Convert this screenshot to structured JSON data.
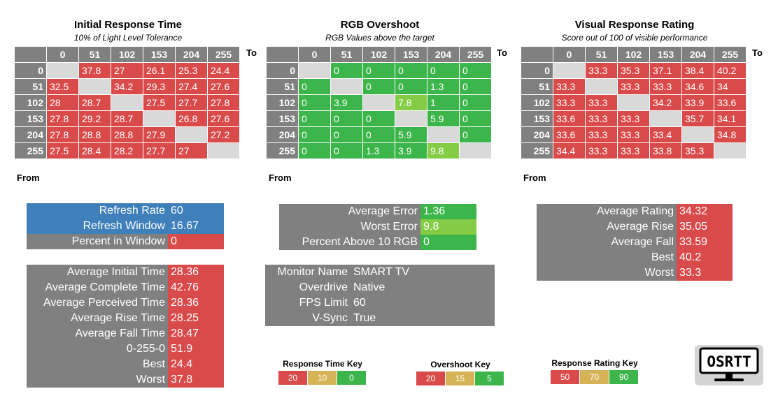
{
  "colors": {
    "red": "#d94b4b",
    "green": "#3cb54a",
    "lightgreen": "#85cc46",
    "yellow": "#d6b357",
    "grey": "#808080",
    "blue": "#3f7fba",
    "blank": "#d9d9d9"
  },
  "chart_data": [
    {
      "type": "heatmap",
      "title": "Initial Response Time",
      "subtitle": "10% of Light Level Tolerance",
      "to_label": "To",
      "from_label": "From",
      "columns": [
        "0",
        "51",
        "102",
        "153",
        "204",
        "255"
      ],
      "rows": [
        "0",
        "51",
        "102",
        "153",
        "204",
        "255"
      ],
      "values": [
        [
          null,
          "37.8",
          "27",
          "26.1",
          "25.3",
          "24.4"
        ],
        [
          "32.5",
          null,
          "34.2",
          "29.3",
          "27.4",
          "27.6"
        ],
        [
          "28",
          "28.7",
          null,
          "27.5",
          "27.7",
          "27.8"
        ],
        [
          "27.8",
          "29.2",
          "28.7",
          null,
          "26.8",
          "27.6"
        ],
        [
          "27.8",
          "28.8",
          "28.8",
          "27.9",
          null,
          "27.2"
        ],
        [
          "27.5",
          "28.4",
          "28.2",
          "27.7",
          "27",
          null
        ]
      ],
      "cell_colors": [
        [
          null,
          "red",
          "red",
          "red",
          "red",
          "red"
        ],
        [
          "red",
          null,
          "red",
          "red",
          "red",
          "red"
        ],
        [
          "red",
          "red",
          null,
          "red",
          "red",
          "red"
        ],
        [
          "red",
          "red",
          "red",
          null,
          "red",
          "red"
        ],
        [
          "red",
          "red",
          "red",
          "red",
          null,
          "red"
        ],
        [
          "red",
          "red",
          "red",
          "red",
          "red",
          null
        ]
      ]
    },
    {
      "type": "heatmap",
      "title": "RGB Overshoot",
      "subtitle": "RGB Values above the target",
      "to_label": "To",
      "from_label": "From",
      "columns": [
        "0",
        "51",
        "102",
        "153",
        "204",
        "255"
      ],
      "rows": [
        "0",
        "51",
        "102",
        "153",
        "204",
        "255"
      ],
      "values": [
        [
          null,
          "0",
          "0",
          "0",
          "0",
          "0"
        ],
        [
          "0",
          null,
          "0",
          "0",
          "1.3",
          "0"
        ],
        [
          "0",
          "3.9",
          null,
          "7.8",
          "1",
          "0"
        ],
        [
          "0",
          "0",
          "0",
          null,
          "5.9",
          "0"
        ],
        [
          "0",
          "0",
          "0",
          "5.9",
          null,
          "0"
        ],
        [
          "0",
          "0",
          "1.3",
          "3.9",
          "9.8",
          null
        ]
      ],
      "cell_colors": [
        [
          null,
          "green",
          "green",
          "green",
          "green",
          "green"
        ],
        [
          "green",
          null,
          "green",
          "green",
          "green",
          "green"
        ],
        [
          "green",
          "green",
          null,
          "lightgreen",
          "green",
          "green"
        ],
        [
          "green",
          "green",
          "green",
          null,
          "green",
          "green"
        ],
        [
          "green",
          "green",
          "green",
          "green",
          null,
          "green"
        ],
        [
          "green",
          "green",
          "green",
          "green",
          "lightgreen",
          null
        ]
      ]
    },
    {
      "type": "heatmap",
      "title": "Visual Response Rating",
      "subtitle": "Score out of 100 of visible performance",
      "to_label": "To",
      "from_label": "From",
      "columns": [
        "0",
        "51",
        "102",
        "153",
        "204",
        "255"
      ],
      "rows": [
        "0",
        "51",
        "102",
        "153",
        "204",
        "255"
      ],
      "values": [
        [
          null,
          "33.3",
          "35.3",
          "37.1",
          "38.4",
          "40.2"
        ],
        [
          "33.3",
          null,
          "33.3",
          "33.3",
          "34.6",
          "34"
        ],
        [
          "33.3",
          "33.3",
          null,
          "34.2",
          "33.9",
          "33.6"
        ],
        [
          "33.6",
          "33.3",
          "33.3",
          null,
          "35.7",
          "34.1"
        ],
        [
          "33.6",
          "33.3",
          "33.3",
          "33.4",
          null,
          "34.8"
        ],
        [
          "34.4",
          "33.3",
          "33.3",
          "33.8",
          "35.3",
          null
        ]
      ],
      "cell_colors": [
        [
          null,
          "red",
          "red",
          "red",
          "red",
          "red"
        ],
        [
          "red",
          null,
          "red",
          "red",
          "red",
          "red"
        ],
        [
          "red",
          "red",
          null,
          "red",
          "red",
          "red"
        ],
        [
          "red",
          "red",
          "red",
          null,
          "red",
          "red"
        ],
        [
          "red",
          "red",
          "red",
          "red",
          null,
          "red"
        ],
        [
          "red",
          "red",
          "red",
          "red",
          "red",
          null
        ]
      ]
    }
  ],
  "refresh_table": [
    {
      "label": "Refresh Rate",
      "value": "60",
      "label_color": "blue",
      "value_color": "blue"
    },
    {
      "label": "Refresh Window",
      "value": "16.67",
      "label_color": "blue",
      "value_color": "blue"
    },
    {
      "label": "Percent in Window",
      "value": "0",
      "label_color": "grey",
      "value_color": "red"
    }
  ],
  "response_stats": [
    {
      "label": "Average Initial Time",
      "value": "28.36"
    },
    {
      "label": "Average Complete Time",
      "value": "42.76"
    },
    {
      "label": "Average Perceived Time",
      "value": "28.36"
    },
    {
      "label": "Average Rise Time",
      "value": "28.25"
    },
    {
      "label": "Average Fall Time",
      "value": "28.47"
    },
    {
      "label": "0-255-0",
      "value": "51.9"
    },
    {
      "label": "Best",
      "value": "24.4"
    },
    {
      "label": "Worst",
      "value": "37.8"
    }
  ],
  "error_stats": [
    {
      "label": "Average Error",
      "value": "1.36",
      "value_color": "green"
    },
    {
      "label": "Worst Error",
      "value": "9.8",
      "value_color": "lightgreen"
    },
    {
      "label": "Percent Above 10 RGB",
      "value": "0",
      "value_color": "green"
    }
  ],
  "monitor_info": [
    {
      "label": "Monitor Name",
      "value": "SMART TV"
    },
    {
      "label": "Overdrive",
      "value": "Native"
    },
    {
      "label": "FPS Limit",
      "value": "60"
    },
    {
      "label": "V-Sync",
      "value": "True"
    }
  ],
  "rating_stats": [
    {
      "label": "Average Rating",
      "value": "34.32"
    },
    {
      "label": "Average Rise",
      "value": "35.05"
    },
    {
      "label": "Average Fall",
      "value": "33.59"
    },
    {
      "label": "Best",
      "value": "40.2"
    },
    {
      "label": "Worst",
      "value": "33.3"
    }
  ],
  "keys": [
    {
      "title": "Response Time Key",
      "items": [
        {
          "label": "20",
          "color": "red"
        },
        {
          "label": "10",
          "color": "yellow"
        },
        {
          "label": "0",
          "color": "green"
        }
      ]
    },
    {
      "title": "Overshoot Key",
      "items": [
        {
          "label": "20",
          "color": "red"
        },
        {
          "label": "15",
          "color": "yellow"
        },
        {
          "label": "5",
          "color": "green"
        }
      ]
    },
    {
      "title": "Response Rating Key",
      "items": [
        {
          "label": "50",
          "color": "red"
        },
        {
          "label": "70",
          "color": "yellow"
        },
        {
          "label": "90",
          "color": "green"
        }
      ]
    }
  ],
  "logo_text": "OSRTT"
}
